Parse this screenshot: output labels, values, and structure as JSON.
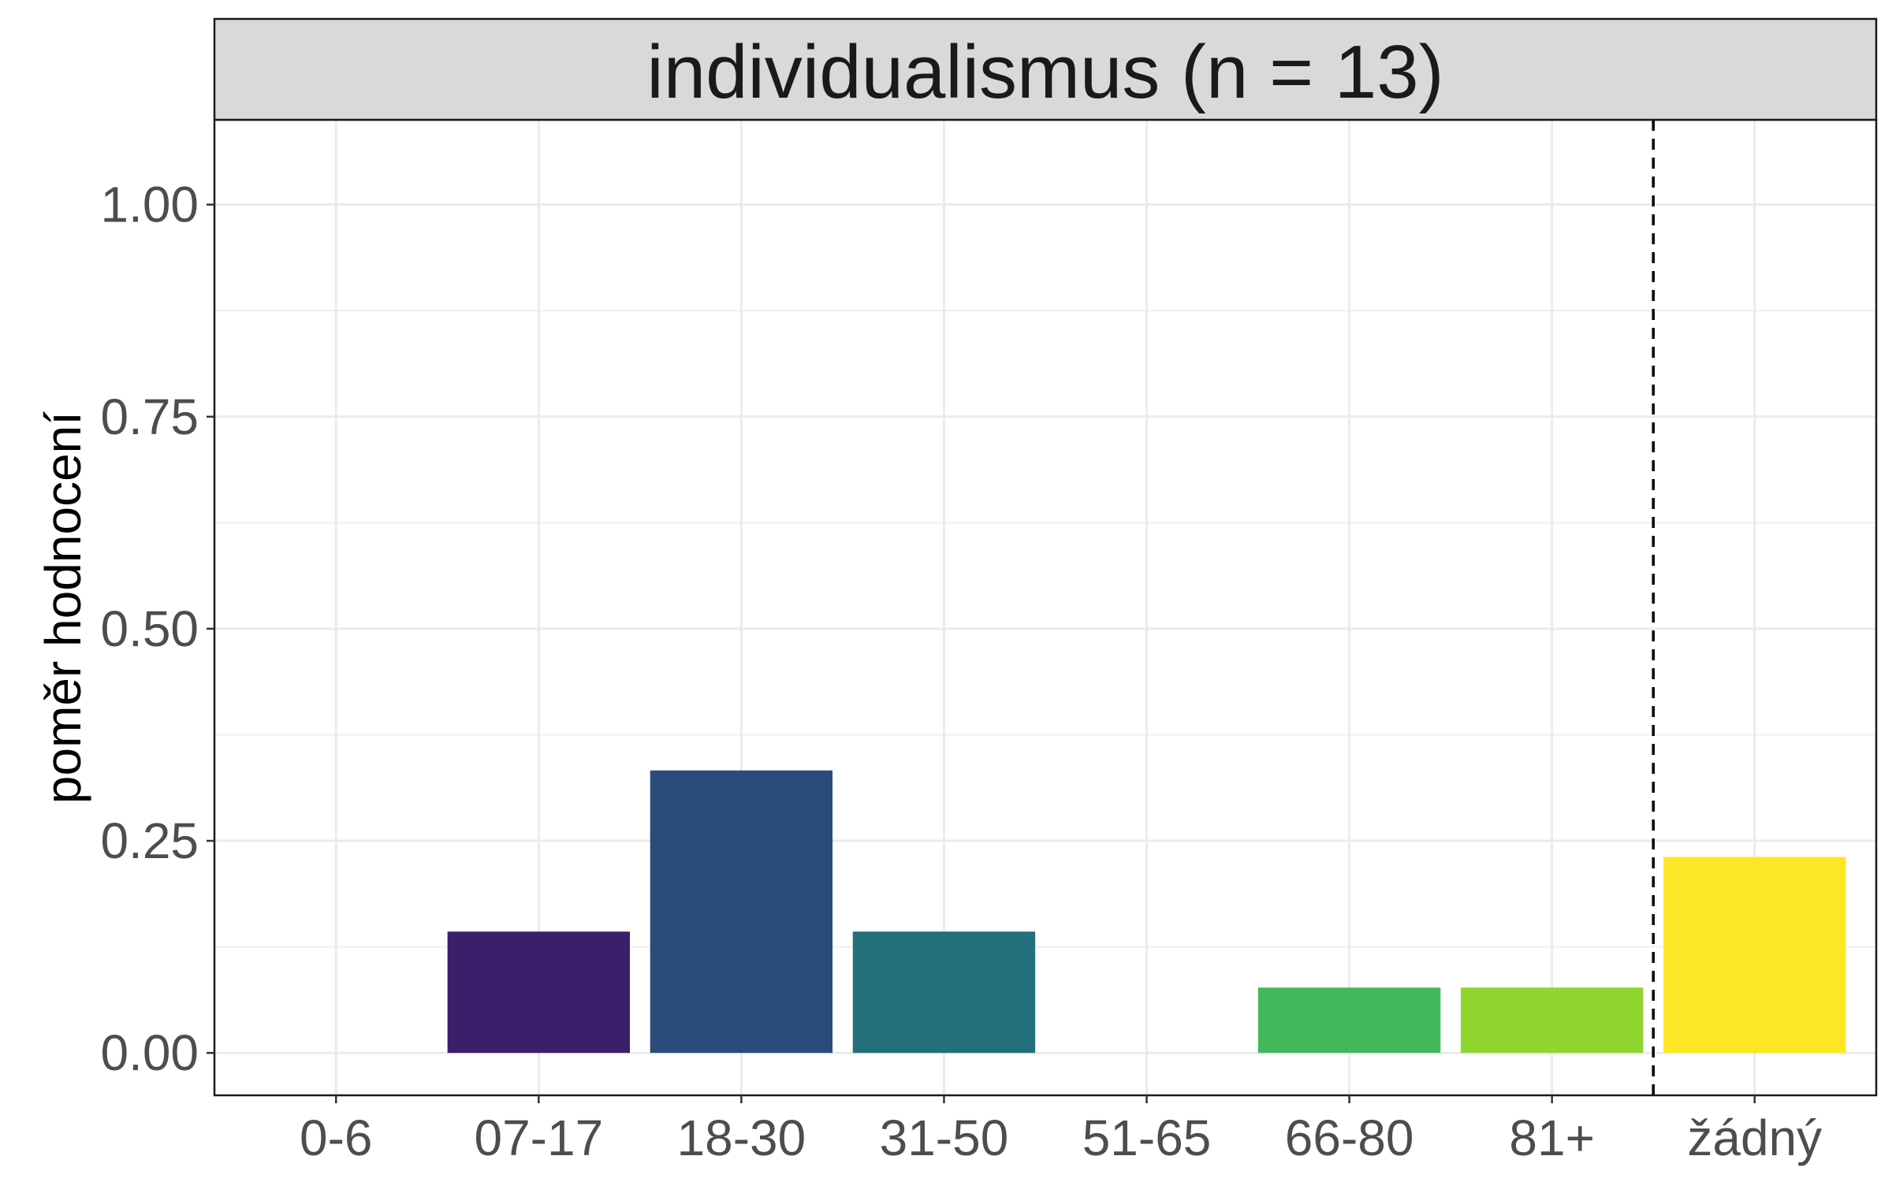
{
  "chart_data": {
    "type": "bar",
    "title": "individualismus (n = 13)",
    "xlabel": "",
    "ylabel": "poměr hodnocení",
    "categories": [
      "0-6",
      "07-17",
      "18-30",
      "31-50",
      "51-65",
      "66-80",
      "81+",
      "žádný"
    ],
    "values": [
      0,
      0.143,
      0.333,
      0.143,
      0,
      0.077,
      0.077,
      0.231
    ],
    "colors": [
      "#440154",
      "#3b1f6b",
      "#2b4b7a",
      "#21707c",
      "#25908c",
      "#41b85a",
      "#8ed62f",
      "#fde725"
    ],
    "ylim": [
      -0.05,
      1.1
    ],
    "yticks": [
      "0.00",
      "0.25",
      "0.50",
      "0.75",
      "1.00"
    ],
    "ytick_values": [
      0,
      0.25,
      0.5,
      0.75,
      1.0
    ],
    "reference_line": {
      "after_category": "81+",
      "style": "dashed"
    },
    "grid": true,
    "legend": "none"
  }
}
